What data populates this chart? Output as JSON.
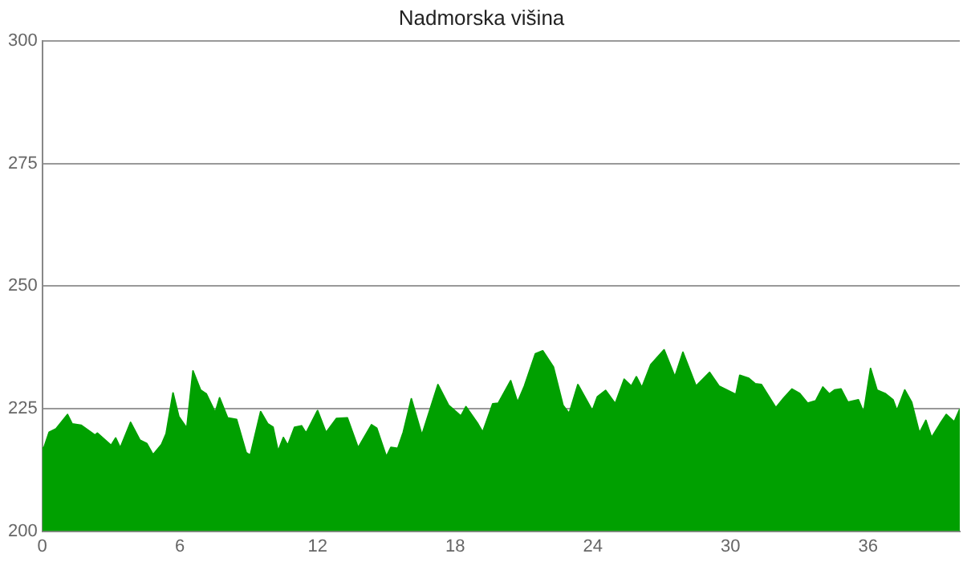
{
  "chart_data": {
    "type": "area",
    "title": "Nadmorska višina",
    "color": "#00a000",
    "marker": "none",
    "grid": "y",
    "legend": false,
    "xlim": [
      0,
      40
    ],
    "xticks": [
      0,
      6,
      12,
      18,
      24,
      30,
      36
    ],
    "ylim": [
      200,
      300
    ],
    "yticks": [
      200,
      225,
      250,
      275,
      300
    ],
    "x": [
      0,
      0.07,
      0.3,
      0.6,
      1.1,
      1.3,
      1.7,
      2.3,
      2.4,
      3.0,
      3.2,
      3.4,
      3.85,
      4.25,
      4.55,
      4.83,
      5.2,
      5.4,
      5.7,
      5.95,
      6.3,
      6.57,
      6.9,
      7.15,
      7.54,
      7.73,
      8.08,
      8.47,
      8.89,
      9.07,
      9.52,
      9.83,
      10.06,
      10.28,
      10.51,
      10.7,
      11,
      11.3,
      11.5,
      12,
      12.37,
      12.83,
      13.3,
      13.77,
      14.35,
      14.58,
      15,
      15.2,
      15.5,
      15.74,
      16.09,
      16.55,
      17.25,
      17.71,
      18.25,
      18.47,
      18.99,
      19.2,
      19.64,
      19.88,
      20.42,
      20.72,
      21.02,
      21.5,
      21.82,
      22.28,
      22.7,
      22.97,
      23.35,
      23.98,
      24.2,
      24.56,
      24.98,
      25.37,
      25.68,
      25.9,
      26.14,
      26.53,
      27.11,
      27.58,
      27.93,
      28.5,
      29.09,
      29.5,
      30.24,
      30.41,
      30.8,
      31.07,
      31.35,
      31.98,
      32.33,
      32.68,
      33.02,
      33.37,
      33.72,
      34.03,
      34.31,
      34.54,
      34.82,
      35.12,
      35.58,
      35.81,
      36.11,
      36.39,
      36.74,
      37.09,
      37.26,
      37.6,
      37.9,
      38.24,
      38.52,
      38.77,
      39.14,
      39.41,
      39.76,
      40
    ],
    "values": [
      217,
      217,
      220.2,
      220.9,
      223.8,
      221.9,
      221.6,
      219.6,
      220,
      217.5,
      219,
      217,
      222.2,
      218.6,
      217.9,
      215.6,
      217.7,
      219.9,
      228.2,
      223.4,
      221,
      232.7,
      228.8,
      228,
      224.2,
      227.2,
      223.1,
      222.8,
      216,
      215.5,
      224.4,
      221.9,
      221.2,
      216.3,
      219.1,
      217.5,
      221.2,
      221.5,
      220,
      224.6,
      220.1,
      223,
      223.1,
      217,
      221.7,
      221,
      215.2,
      217.1,
      216.9,
      220.2,
      227,
      219.6,
      229.9,
      225.7,
      223.5,
      225.4,
      221.9,
      220.2,
      226,
      226.1,
      230.7,
      226.3,
      229.6,
      236.2,
      236.8,
      233.5,
      225.7,
      224,
      229.9,
      224.6,
      227.4,
      228.7,
      226,
      231,
      229.6,
      231.5,
      229.3,
      234,
      237,
      231.5,
      236.5,
      229.6,
      232.4,
      229.6,
      227.9,
      231.8,
      231.2,
      230.1,
      229.9,
      225.2,
      227.2,
      229,
      228.1,
      226.1,
      226.6,
      229.4,
      228,
      228.8,
      229,
      226.3,
      226.8,
      224.2,
      233.2,
      228.8,
      228.1,
      226.8,
      224.6,
      228.8,
      226.3,
      220,
      222.6,
      219.1,
      221.9,
      223.8,
      222.3,
      224.9
    ]
  }
}
